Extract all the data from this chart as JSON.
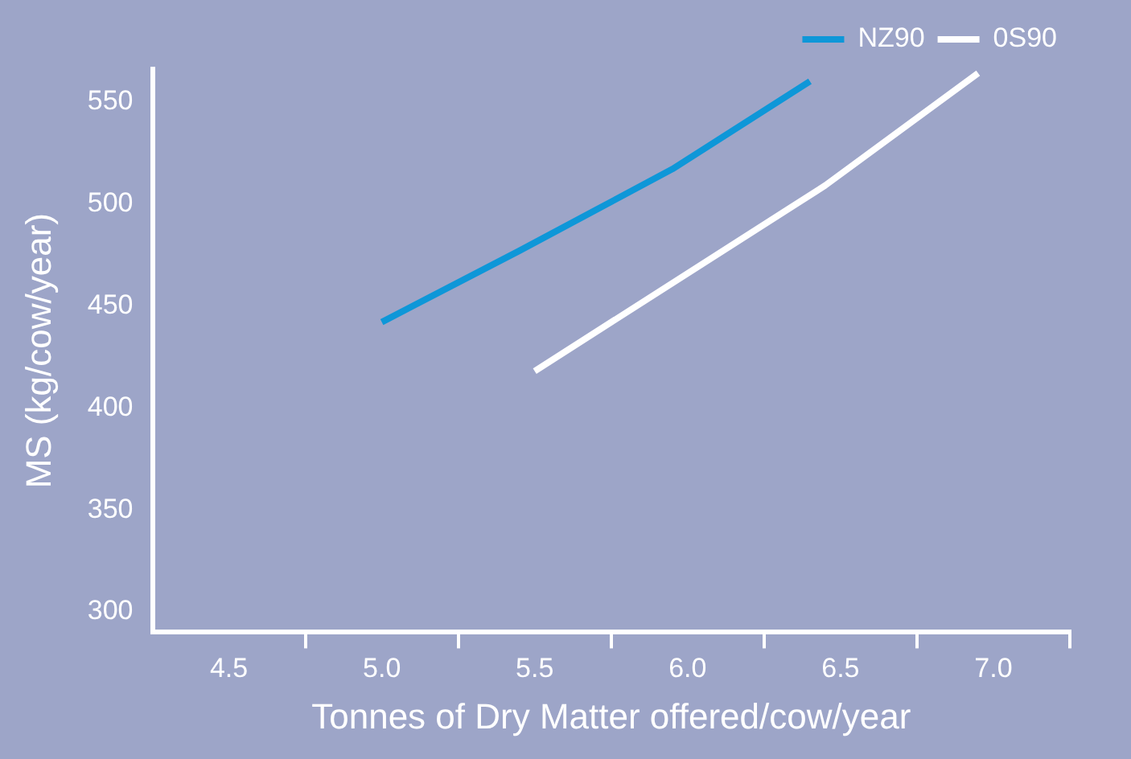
{
  "chart_data": {
    "type": "line",
    "xlabel": "Tonnes of Dry Matter offered/cow/year",
    "ylabel": "MS (kg/cow/year)",
    "xlim": [
      4.25,
      7.25
    ],
    "xticks": [
      {
        "value": 4.5,
        "label": "4.5"
      },
      {
        "value": 4.75,
        "label": null
      },
      {
        "value": 5.0,
        "label": "5.0"
      },
      {
        "value": 5.25,
        "label": null
      },
      {
        "value": 5.5,
        "label": "5.5"
      },
      {
        "value": 5.75,
        "label": null
      },
      {
        "value": 6.0,
        "label": "6.0"
      },
      {
        "value": 6.25,
        "label": null
      },
      {
        "value": 6.5,
        "label": "6.5"
      },
      {
        "value": 6.75,
        "label": null
      },
      {
        "value": 7.0,
        "label": "7.0"
      },
      {
        "value": 7.25,
        "label": null
      }
    ],
    "ylim": [
      290,
      566
    ],
    "yticks": [
      300,
      350,
      400,
      450,
      500,
      550
    ],
    "series": [
      {
        "name": "NZ90",
        "color": "#0e97d8",
        "x": [
          5.0,
          5.45,
          5.95,
          6.4
        ],
        "values": [
          442,
          477,
          517,
          560
        ]
      },
      {
        "name": "0S90",
        "color": "#ffffff",
        "x": [
          5.5,
          6.45,
          6.95
        ],
        "values": [
          418,
          509,
          564
        ]
      }
    ],
    "legend": "top right",
    "grid": false,
    "marker": "none",
    "line_style": "solid"
  }
}
